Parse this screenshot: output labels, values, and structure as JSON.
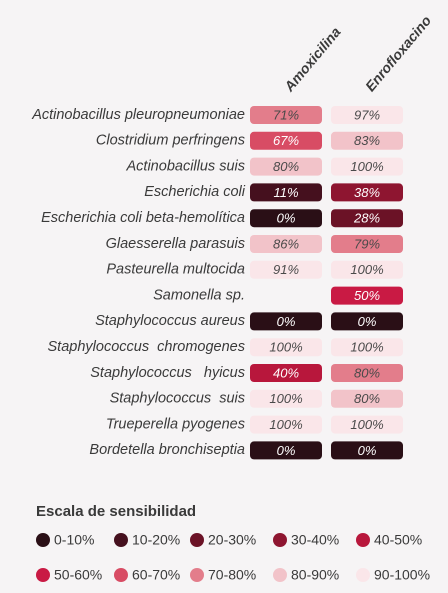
{
  "columns": [
    "Amoxicilina",
    "Enrofloxacino"
  ],
  "rows": [
    {
      "name": "Actinobacillus pleuropneumoniae",
      "cells": [
        {
          "text": "71%",
          "color": "#e37d8b"
        },
        {
          "text": "97%",
          "color": "#fae6e9"
        }
      ]
    },
    {
      "name": "Clostridium perfringens",
      "cells": [
        {
          "text": "67%",
          "color": "#d84c64"
        },
        {
          "text": "83%",
          "color": "#f2c3c9"
        }
      ]
    },
    {
      "name": "Actinobacillus suis",
      "cells": [
        {
          "text": "80%",
          "color": "#f2c3c9"
        },
        {
          "text": "100%",
          "color": "#fae6e9"
        }
      ]
    },
    {
      "name": "Escherichia coli",
      "cells": [
        {
          "text": "11%",
          "color": "#45101e"
        },
        {
          "text": "38%",
          "color": "#8e1530"
        }
      ]
    },
    {
      "name": "Escherichia coli beta-hemolítica",
      "cells": [
        {
          "text": "0%",
          "color": "#2a0f16"
        },
        {
          "text": "28%",
          "color": "#6b1226"
        }
      ]
    },
    {
      "name": "Glaesserella parasuis",
      "cells": [
        {
          "text": "86%",
          "color": "#f2c3c9"
        },
        {
          "text": "79%",
          "color": "#e37d8b"
        }
      ]
    },
    {
      "name": "Pasteurella multocida",
      "cells": [
        {
          "text": "91%",
          "color": "#fae6e9"
        },
        {
          "text": "100%",
          "color": "#fae6e9"
        }
      ]
    },
    {
      "name": "Samonella sp.",
      "cells": [
        null,
        {
          "text": "50%",
          "color": "#c91a44"
        }
      ]
    },
    {
      "name": "Staphylococcus aureus",
      "cells": [
        {
          "text": "0%",
          "color": "#2a0f16"
        },
        {
          "text": "0%",
          "color": "#2a0f16"
        }
      ]
    },
    {
      "name": "Staphylococcus  chromogenes",
      "cells": [
        {
          "text": "100%",
          "color": "#fae6e9"
        },
        {
          "text": "100%",
          "color": "#fae6e9"
        }
      ]
    },
    {
      "name": "Staphylococcus   hyicus",
      "cells": [
        {
          "text": "40%",
          "color": "#b8173c"
        },
        {
          "text": "80%",
          "color": "#e37d8b"
        }
      ]
    },
    {
      "name": "Staphylococcus  suis",
      "cells": [
        {
          "text": "100%",
          "color": "#fae6e9"
        },
        {
          "text": "80%",
          "color": "#f2c3c9"
        }
      ]
    },
    {
      "name": "Trueperella pyogenes",
      "cells": [
        {
          "text": "100%",
          "color": "#fae6e9"
        },
        {
          "text": "100%",
          "color": "#fae6e9"
        }
      ]
    },
    {
      "name": "Bordetella bronchiseptia",
      "cells": [
        {
          "text": "0%",
          "color": "#2a0f16"
        },
        {
          "text": "0%",
          "color": "#2a0f16"
        }
      ]
    }
  ],
  "legend": {
    "title": "Escala de sensibilidad",
    "items": [
      {
        "label": "0-10%",
        "color": "#2a0f16"
      },
      {
        "label": "10-20%",
        "color": "#45101e"
      },
      {
        "label": "20-30%",
        "color": "#6b1226"
      },
      {
        "label": "30-40%",
        "color": "#8e1530"
      },
      {
        "label": "40-50%",
        "color": "#b8173c"
      },
      {
        "label": "50-60%",
        "color": "#c91a44"
      },
      {
        "label": "60-70%",
        "color": "#d84c64"
      },
      {
        "label": "70-80%",
        "color": "#e37d8b"
      },
      {
        "label": "80-90%",
        "color": "#f2c3c9"
      },
      {
        "label": "90-100%",
        "color": "#fae6e9"
      }
    ]
  }
}
